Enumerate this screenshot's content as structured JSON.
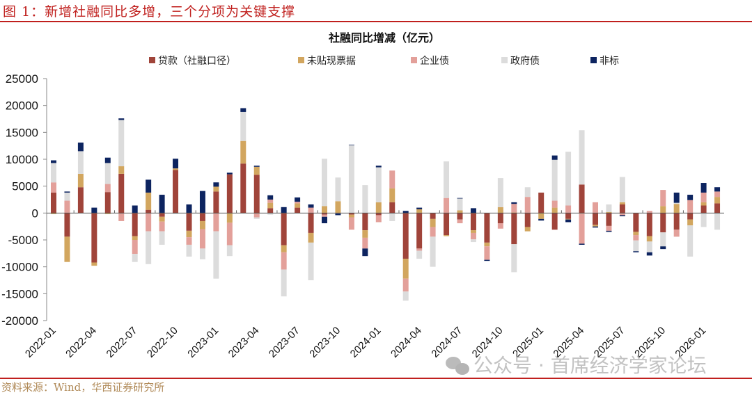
{
  "figure_title": "图 1：新增社融同比多增，三个分项为关键支撑",
  "source": "资料来源：Wind，华西证券研究所",
  "watermark": "公众号 · 首席经济学家论坛",
  "chart_data": {
    "type": "bar",
    "stacked": true,
    "title": "社融同比增减（亿元）",
    "xlabel": "",
    "ylabel": "",
    "ylim": [
      -20000,
      25000
    ],
    "yticks": [
      25000,
      20000,
      15000,
      10000,
      5000,
      0,
      -5000,
      -10000,
      -15000,
      -20000
    ],
    "xtick_labels": [
      "2022-01",
      "2022-04",
      "2022-07",
      "2022-10",
      "2023-01",
      "2023-04",
      "2023-07",
      "2023-10",
      "2024-01",
      "2024-04",
      "2024-07",
      "2024-10",
      "2025-01",
      "2025-04",
      "2025-07",
      "2025-10",
      "2026-01"
    ],
    "legend_position": "top",
    "categories": [
      "2022-01",
      "2022-02",
      "2022-03",
      "2022-04",
      "2022-05",
      "2022-06",
      "2022-07",
      "2022-08",
      "2022-09",
      "2022-10",
      "2022-11",
      "2022-12",
      "2023-01",
      "2023-02",
      "2023-03",
      "2023-04",
      "2023-05",
      "2023-06",
      "2023-07",
      "2023-08",
      "2023-09",
      "2023-10",
      "2023-11",
      "2023-12",
      "2024-01",
      "2024-02",
      "2024-03",
      "2024-04",
      "2024-05",
      "2024-06",
      "2024-07",
      "2024-08",
      "2024-09",
      "2024-10",
      "2024-11",
      "2024-12",
      "2025-01",
      "2025-02",
      "2025-03",
      "2025-04",
      "2025-05",
      "2025-06",
      "2025-07",
      "2025-08",
      "2025-09",
      "2025-10",
      "2025-11",
      "2025-12",
      "2026-01",
      "2026-02"
    ],
    "series": [
      {
        "name": "贷款（社融口径）",
        "color": "#a0443a",
        "values": [
          3800,
          -4400,
          4800,
          -9200,
          3900,
          7300,
          -4300,
          600,
          -700,
          8000,
          -3300,
          -1500,
          4000,
          7200,
          9200,
          7100,
          900,
          -6000,
          1000,
          -3700,
          -300,
          0,
          -300,
          -3200,
          -400,
          2000,
          -8500,
          -6600,
          -1100,
          -4100,
          -1200,
          -3200,
          -5500,
          -1900,
          -5800,
          -2600,
          3800,
          -3100,
          -1100,
          5300,
          -2200,
          -2400,
          1600,
          -3500,
          -4300,
          -3600,
          -3100,
          -1200,
          1400,
          1800
        ]
      },
      {
        "name": "未贴现票据",
        "color": "#d2a65f",
        "values": [
          -200,
          -4700,
          2500,
          -600,
          -200,
          1400,
          -700,
          3200,
          -900,
          300,
          -1200,
          -1500,
          900,
          -1800,
          4200,
          1500,
          1000,
          -1300,
          800,
          -1800,
          1300,
          2200,
          -500,
          -1400,
          2000,
          2600,
          -3700,
          700,
          -1500,
          -200,
          500,
          -500,
          -700,
          1100,
          100,
          -800,
          -1100,
          1000,
          -100,
          -100,
          -300,
          200,
          400,
          -600,
          -1000,
          1300,
          1700,
          -1100,
          600,
          1200
        ]
      },
      {
        "name": "企业债",
        "color": "#e3a09a",
        "values": [
          1900,
          2300,
          0,
          0,
          1500,
          -1500,
          -2600,
          -3400,
          -1800,
          0,
          -1400,
          -3600,
          -3400,
          -4200,
          0,
          -800,
          600,
          -3200,
          300,
          1000,
          -400,
          -100,
          -2300,
          -2000,
          -1300,
          3300,
          -2400,
          -400,
          -1800,
          2800,
          -700,
          -1200,
          -2500,
          -1000,
          1600,
          3000,
          0,
          1300,
          1400,
          -5600,
          2000,
          -900,
          -400,
          -1000,
          400,
          3000,
          -1300,
          2400,
          1800,
          1000
        ]
      },
      {
        "name": "政府债",
        "color": "#dcdcdc",
        "values": [
          3600,
          1500,
          4200,
          0,
          3900,
          8600,
          -1500,
          -6100,
          -2500,
          -200,
          -2200,
          -2000,
          -8800,
          -2000,
          5400,
          -300,
          -300,
          -5000,
          0,
          -7000,
          8800,
          4400,
          12600,
          5200,
          6500,
          -1500,
          -1700,
          -1500,
          -5600,
          6800,
          2200,
          -500,
          0,
          5400,
          -5200,
          1800,
          0,
          7600,
          10000,
          10100,
          0,
          1400,
          4700,
          -2000,
          -2000,
          -2600,
          200,
          -5800,
          -2600,
          -3100
        ]
      },
      {
        "name": "非标",
        "color": "#0d2460",
        "values": [
          500,
          200,
          1600,
          1000,
          1000,
          300,
          1400,
          2400,
          3400,
          1800,
          1600,
          4100,
          800,
          300,
          700,
          200,
          800,
          1100,
          800,
          600,
          -1200,
          -300,
          100,
          -1400,
          300,
          0,
          400,
          300,
          0,
          0,
          100,
          900,
          -200,
          0,
          300,
          0,
          -300,
          800,
          -500,
          -200,
          -200,
          -200,
          -200,
          -200,
          -600,
          -500,
          1900,
          1000,
          1800,
          800
        ]
      }
    ]
  }
}
